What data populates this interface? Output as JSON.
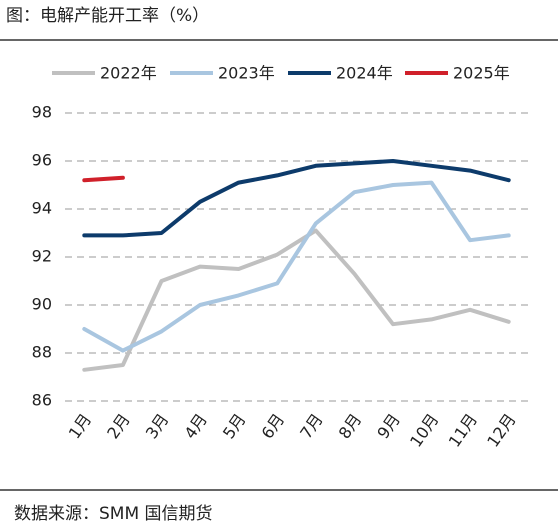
{
  "title": "图：电解产能开工率（%）",
  "source": "数据来源：SMM 国信期货",
  "chart_data": {
    "type": "line",
    "categories": [
      "1月",
      "2月",
      "3月",
      "4月",
      "5月",
      "6月",
      "7月",
      "8月",
      "9月",
      "10月",
      "11月",
      "12月"
    ],
    "series": [
      {
        "name": "2022年",
        "color": "#c0c0c0",
        "values": [
          87.3,
          87.5,
          91.0,
          91.6,
          91.5,
          92.1,
          93.1,
          91.3,
          89.2,
          89.4,
          89.8,
          89.3
        ]
      },
      {
        "name": "2023年",
        "color": "#a9c6e0",
        "values": [
          89.0,
          88.1,
          88.9,
          90.0,
          90.4,
          90.9,
          93.4,
          94.7,
          95.0,
          95.1,
          92.7,
          92.9
        ]
      },
      {
        "name": "2024年",
        "color": "#0d3b6b",
        "values": [
          92.9,
          92.9,
          93.0,
          94.3,
          95.1,
          95.4,
          95.8,
          95.9,
          96.0,
          95.8,
          95.6,
          95.2
        ]
      },
      {
        "name": "2025年",
        "color": "#d0202a",
        "values": [
          95.2,
          95.3,
          null,
          null,
          null,
          null,
          null,
          null,
          null,
          null,
          null,
          null
        ]
      }
    ],
    "ylim": [
      86,
      98
    ],
    "yticks": [
      86,
      88,
      90,
      92,
      94,
      96,
      98
    ],
    "grid": true
  }
}
